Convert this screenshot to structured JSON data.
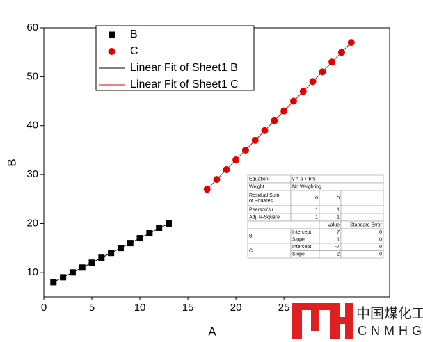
{
  "chart_data": {
    "type": "scatter",
    "xlabel": "A",
    "ylabel": "B",
    "xlim": [
      0,
      36
    ],
    "ylim": [
      5,
      60
    ],
    "xticks": [
      0,
      5,
      10,
      15,
      20,
      25
    ],
    "yticks": [
      10,
      20,
      30,
      40,
      50,
      60
    ],
    "legend": "top-left",
    "series": [
      {
        "name": "B",
        "marker": "square",
        "color": "#000000",
        "x": [
          1,
          2,
          3,
          4,
          5,
          6,
          7,
          8,
          9,
          10,
          11,
          12,
          13
        ],
        "values": [
          8,
          9,
          10,
          11,
          12,
          13,
          14,
          15,
          16,
          17,
          18,
          19,
          20
        ]
      },
      {
        "name": "C",
        "marker": "circle",
        "color": "#e00000",
        "x": [
          17,
          18,
          19,
          20,
          21,
          22,
          23,
          24,
          25,
          26,
          27,
          28,
          29,
          30,
          31,
          32
        ],
        "values": [
          27,
          29,
          31,
          33,
          35,
          37,
          39,
          41,
          43,
          45,
          47,
          49,
          51,
          53,
          55,
          57
        ]
      },
      {
        "name": "Linear Fit of Sheet1 B",
        "marker": "line",
        "color": "#000000",
        "x": [
          1,
          13
        ],
        "values": [
          8,
          20
        ]
      },
      {
        "name": "Linear Fit of Sheet1 C",
        "marker": "line",
        "color": "#e00000",
        "x": [
          17,
          32
        ],
        "values": [
          27,
          57
        ]
      }
    ],
    "fit_table": {
      "equation": [
        "Equation",
        "y = a + b*x"
      ],
      "weight": [
        "Weight",
        "No Weighting"
      ],
      "stats": [
        {
          "label": [
            "Residual Sum",
            "of Squares"
          ],
          "values": [
            "0",
            "0"
          ]
        },
        {
          "label": [
            "Pearson's r"
          ],
          "values": [
            "1",
            "1"
          ]
        },
        {
          "label": [
            "Adj. R-Square"
          ],
          "values": [
            "1",
            "1"
          ]
        }
      ],
      "header": [
        "Value",
        "Standard Error"
      ],
      "groups": [
        {
          "name": "B",
          "rows": [
            [
              "Intercept",
              "7",
              "0"
            ],
            [
              "Slope",
              "1",
              "0"
            ]
          ]
        },
        {
          "name": "C",
          "rows": [
            [
              "Intercept",
              "-7",
              "0"
            ],
            [
              "Slope",
              "2",
              "0"
            ]
          ]
        }
      ]
    }
  },
  "watermark": {
    "cn": "中国煤化工",
    "en": "CNMHG"
  }
}
